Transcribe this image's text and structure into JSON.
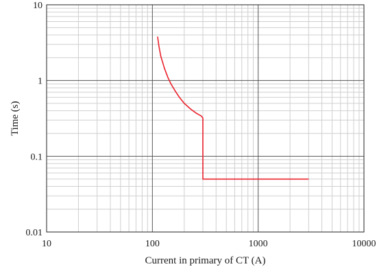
{
  "chart_data": {
    "type": "line",
    "title": "",
    "xlabel": "Current in primary of CT (A)",
    "ylabel": "Time (s)",
    "x_scale": "log",
    "y_scale": "log",
    "xlim": [
      10,
      10000
    ],
    "ylim": [
      0.01,
      10
    ],
    "x_ticks": [
      {
        "value": 10,
        "label": "10"
      },
      {
        "value": 100,
        "label": "100"
      },
      {
        "value": 1000,
        "label": "1000"
      },
      {
        "value": 10000,
        "label": "10000"
      }
    ],
    "y_ticks": [
      {
        "value": 0.01,
        "label": "0.01"
      },
      {
        "value": 0.1,
        "label": "0.1"
      },
      {
        "value": 1,
        "label": "1"
      },
      {
        "value": 10,
        "label": "10"
      }
    ],
    "grid": true,
    "series": [
      {
        "color": "#e8202a",
        "x": [
          112,
          115,
          120,
          130,
          140,
          150,
          165,
          180,
          200,
          230,
          260,
          290,
          300,
          300,
          320,
          400,
          700,
          1000,
          2000,
          3000
        ],
        "y": [
          3.8,
          2.9,
          2.1,
          1.45,
          1.1,
          0.9,
          0.72,
          0.6,
          0.5,
          0.42,
          0.37,
          0.34,
          0.32,
          0.05,
          0.05,
          0.05,
          0.05,
          0.05,
          0.05,
          0.05
        ]
      }
    ]
  }
}
